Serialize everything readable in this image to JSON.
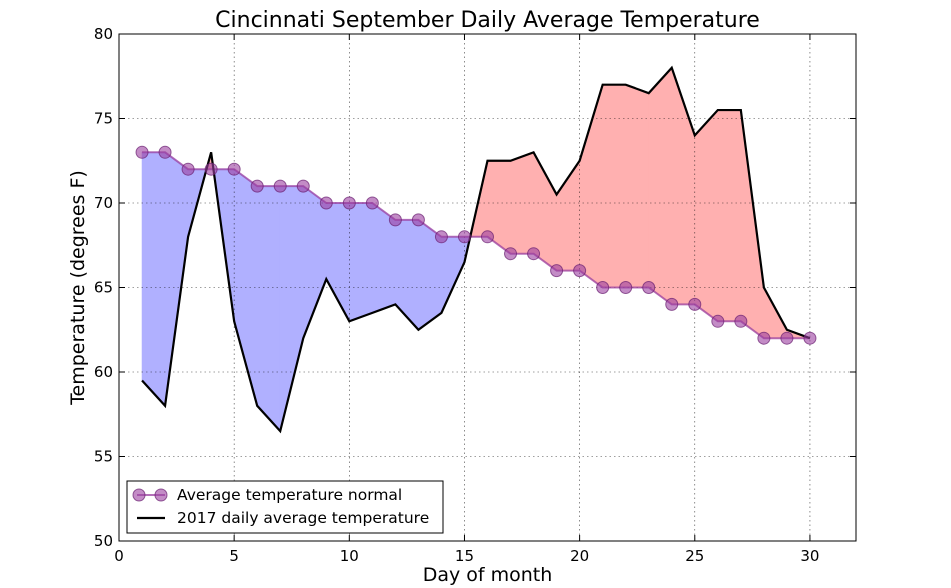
{
  "chart_data": {
    "type": "line",
    "title": "Cincinnati September Daily Average Temperature",
    "xlabel": "Day of month",
    "ylabel": "Temperature (degrees F)",
    "xlim": [
      0,
      32
    ],
    "ylim": [
      50,
      80
    ],
    "xticks": [
      0,
      5,
      10,
      15,
      20,
      25,
      30
    ],
    "yticks": [
      50,
      55,
      60,
      65,
      70,
      75,
      80
    ],
    "grid": true,
    "legend_position": "lower-left",
    "x": [
      1,
      2,
      3,
      4,
      5,
      6,
      7,
      8,
      9,
      10,
      11,
      12,
      13,
      14,
      15,
      16,
      17,
      18,
      19,
      20,
      21,
      22,
      23,
      24,
      25,
      26,
      27,
      28,
      29,
      30
    ],
    "series": [
      {
        "name": "Average temperature normal",
        "style": "line-circle-markers",
        "color": "#9B40A0",
        "values": [
          73,
          73,
          72,
          72,
          72,
          71,
          71,
          71,
          70,
          70,
          70,
          69,
          69,
          68,
          68,
          68,
          67,
          67,
          66,
          66,
          65,
          65,
          65,
          64,
          64,
          63,
          63,
          62,
          62,
          62
        ]
      },
      {
        "name": "2017 daily average temperature",
        "style": "line",
        "color": "#000000",
        "values": [
          59.5,
          58,
          68,
          73,
          63,
          58,
          56.5,
          62,
          65.5,
          63,
          63.5,
          64,
          62.5,
          63.5,
          66.5,
          72.5,
          72.5,
          73,
          70.5,
          72.5,
          77,
          77,
          76.5,
          78,
          74,
          75.5,
          75.5,
          65,
          62.5,
          62
        ]
      }
    ],
    "fill_below_normal_color": "#B0B0FF",
    "fill_above_normal_color": "#FFB0B0"
  }
}
